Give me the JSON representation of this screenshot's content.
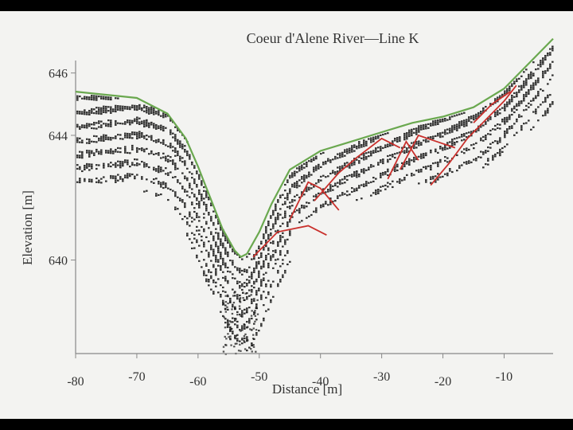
{
  "chart_data": {
    "type": "line",
    "title": "Coeur d'Alene River—Line K",
    "xlabel": "Distance [m]",
    "ylabel": "Elevation [m]",
    "xlim": [
      -80,
      -2
    ],
    "ylim": [
      637,
      646.4
    ],
    "x_ticks": [
      -80,
      -70,
      -60,
      -50,
      -40,
      -30,
      -20,
      -10
    ],
    "x_tick_labels": [
      "-80",
      "-70",
      "-60",
      "-50",
      "-40",
      "-30",
      "-20",
      "-10"
    ],
    "y_ticks": [
      640,
      644,
      646
    ],
    "y_tick_labels": [
      "640",
      "644",
      "646"
    ],
    "grid": false,
    "legend": "none",
    "colors": {
      "surface": "#6aa84f",
      "reflector": "#c9302c",
      "radargram": "#111111"
    },
    "series": [
      {
        "role": "surface",
        "x": [
          -80,
          -70,
          -65,
          -62,
          -60,
          -58,
          -56,
          -54,
          -53,
          -52,
          -50,
          -48,
          -45,
          -40,
          -35,
          -30,
          -25,
          -20,
          -15,
          -10,
          -5,
          -2
        ],
        "y": [
          645.4,
          645.2,
          644.7,
          643.9,
          643.0,
          642.0,
          641.0,
          640.3,
          640.1,
          640.2,
          640.9,
          641.8,
          642.9,
          643.5,
          643.8,
          644.1,
          644.4,
          644.6,
          644.9,
          645.5,
          646.5,
          647.1
        ]
      },
      {
        "role": "reflector",
        "segments": [
          {
            "x": [
              -51,
              -47,
              -42,
              -39
            ],
            "y": [
              640.1,
              640.9,
              641.1,
              640.8
            ]
          },
          {
            "x": [
              -45,
              -42,
              -40,
              -37
            ],
            "y": [
              641.3,
              642.5,
              642.3,
              641.6
            ]
          },
          {
            "x": [
              -41,
              -37,
              -34,
              -30,
              -27
            ],
            "y": [
              641.9,
              642.8,
              643.3,
              643.9,
              643.6
            ]
          },
          {
            "x": [
              -29,
              -26,
              -24
            ],
            "y": [
              642.6,
              643.8,
              643.2
            ]
          },
          {
            "x": [
              -27,
              -24,
              -21,
              -18
            ],
            "y": [
              642.9,
              644.0,
              643.8,
              643.6
            ]
          },
          {
            "x": [
              -22,
              -19,
              -16,
              -13,
              -10,
              -8
            ],
            "y": [
              642.4,
              643.1,
              643.9,
              644.5,
              645.1,
              645.6
            ]
          },
          {
            "x": [
              -15,
              -12,
              -9
            ],
            "y": [
              644.4,
              645.0,
              645.4
            ]
          }
        ]
      }
    ]
  }
}
